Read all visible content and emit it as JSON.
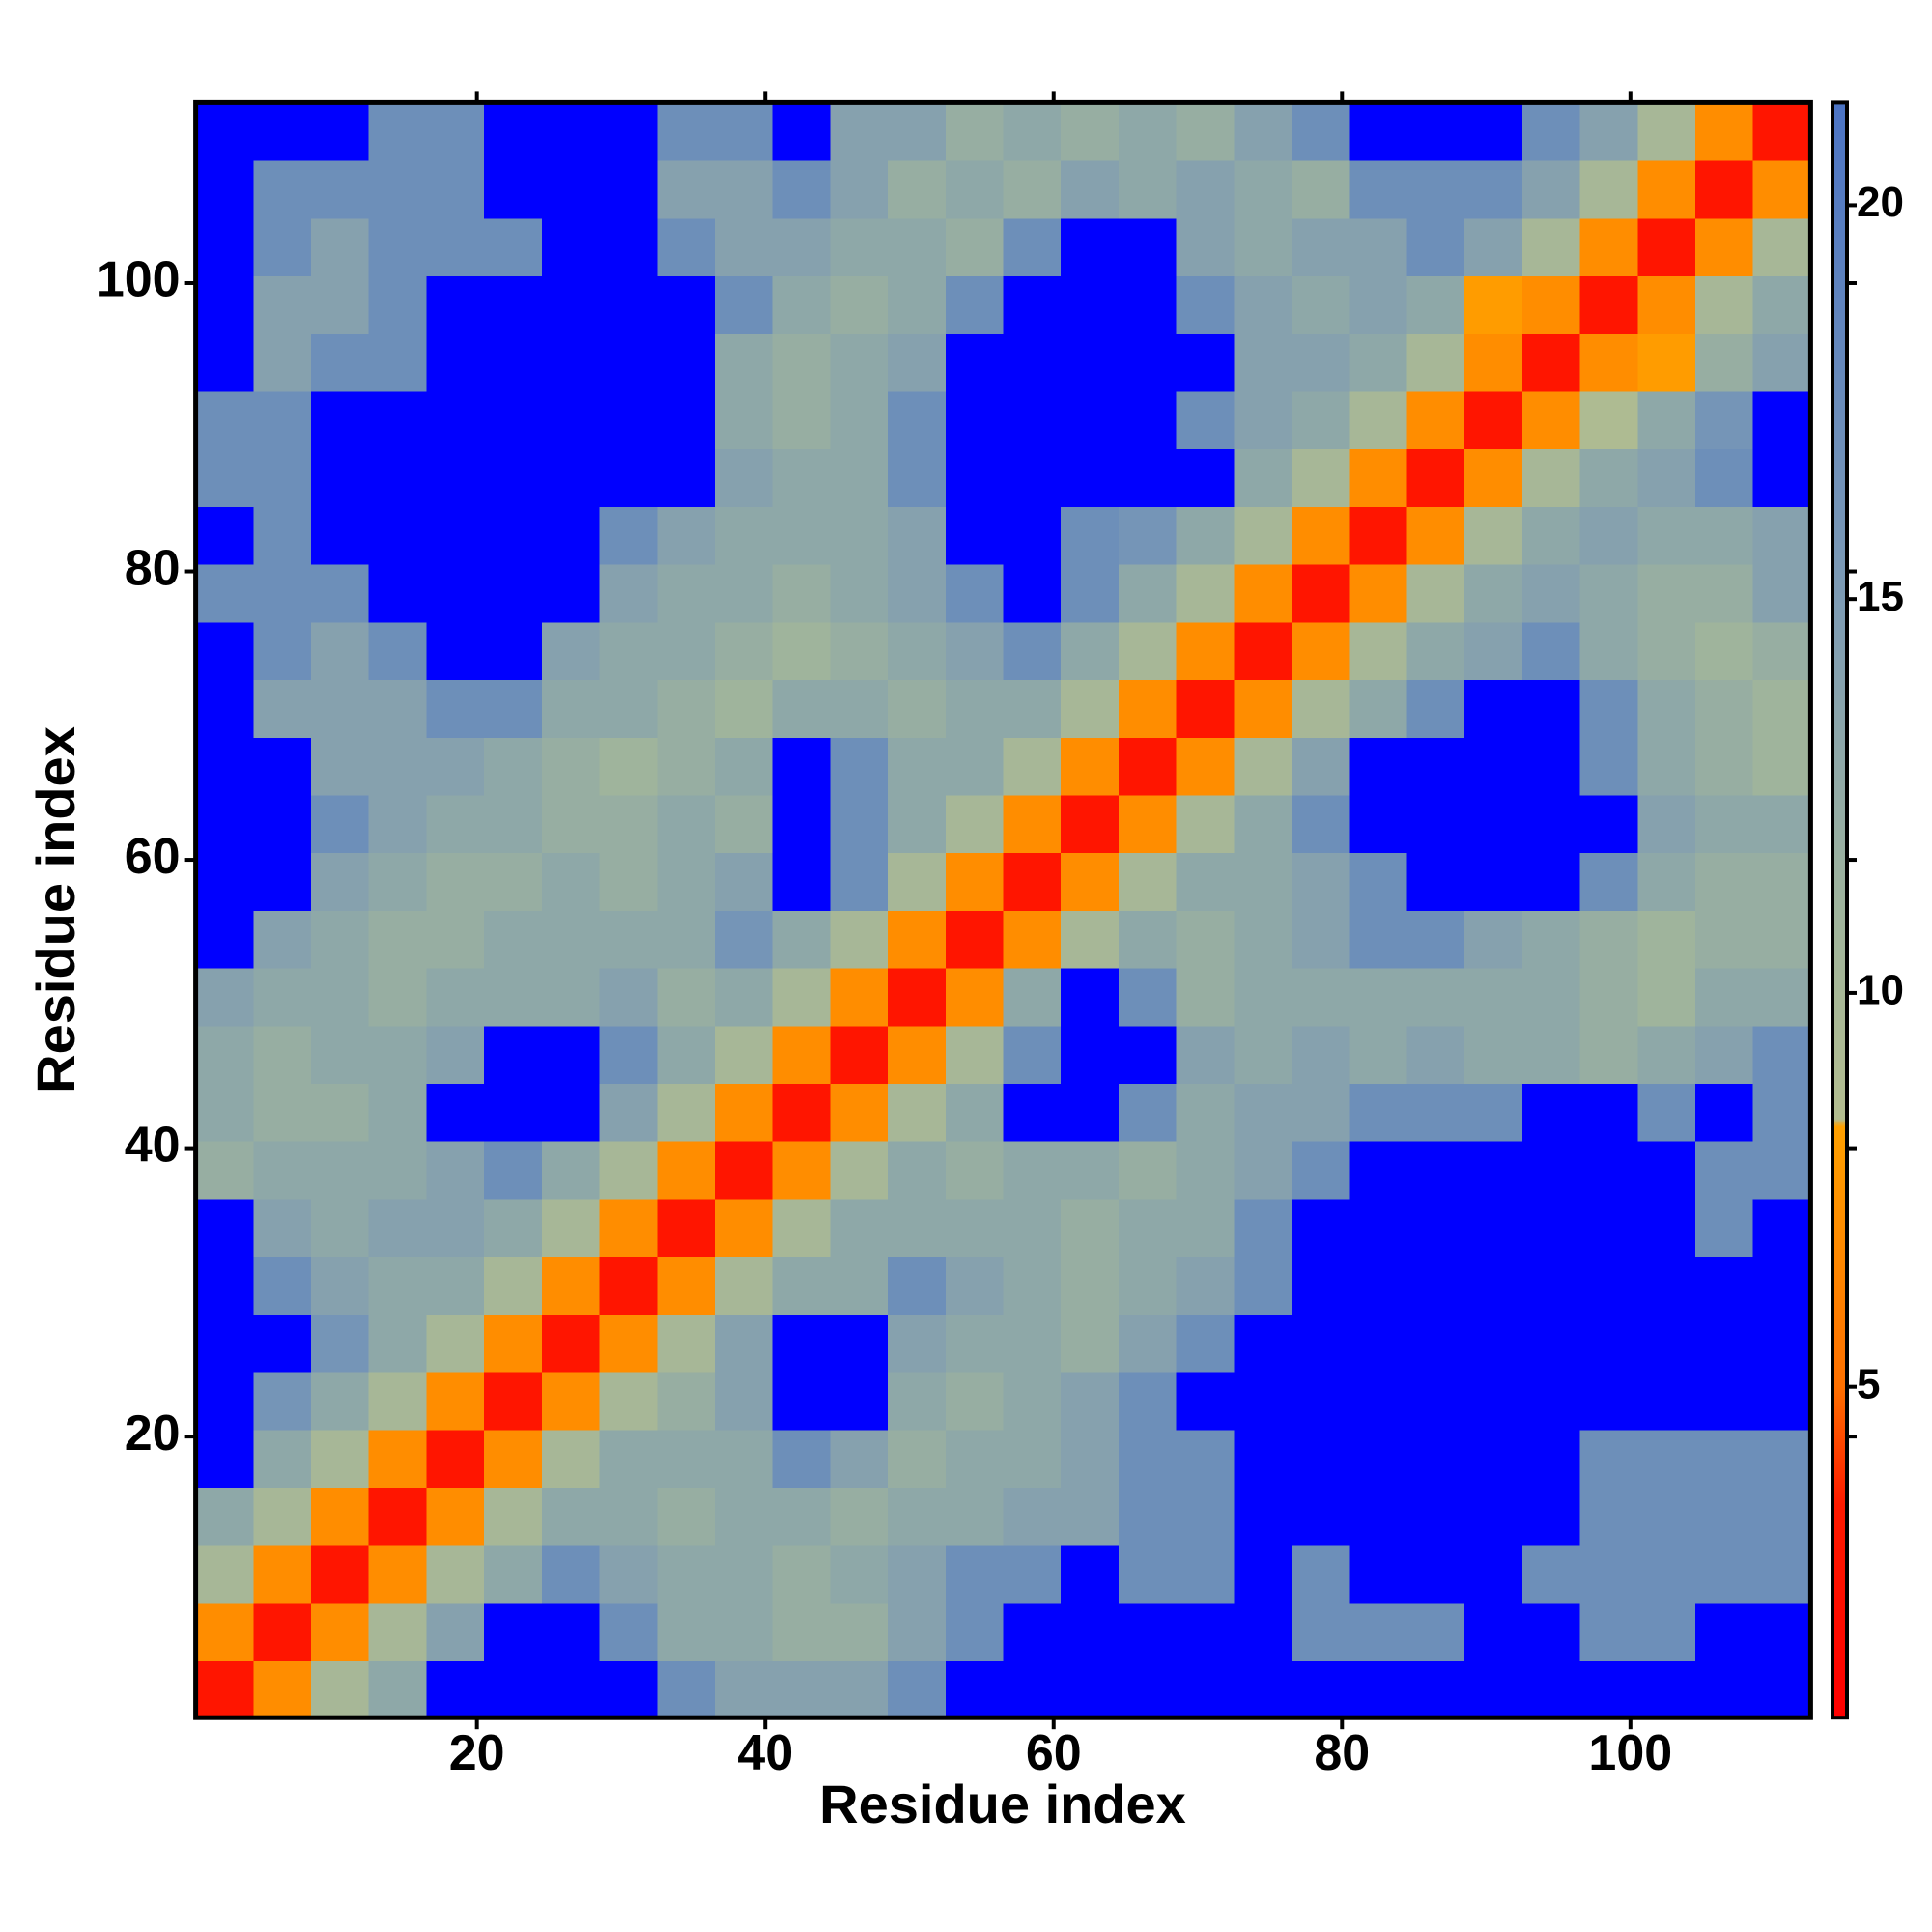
{
  "chart_data": {
    "type": "heatmap",
    "x_label": "Residue index",
    "y_label": "Residue index",
    "xbins": [
      0.5,
      4.5,
      8.5,
      12.5,
      16.5,
      20.5,
      24.5,
      28.5,
      32.5,
      36.5,
      40.5,
      44.5,
      48.5,
      52.5,
      56.5,
      60.5,
      64.5,
      68.5,
      72.5,
      76.5,
      80.5,
      84.5,
      88.5,
      92.5,
      96.5,
      100.5,
      104.5,
      108.5,
      112.5
    ],
    "ybins": [
      0.5,
      4.5,
      8.5,
      12.5,
      16.5,
      20.5,
      24.5,
      28.5,
      32.5,
      36.5,
      40.5,
      44.5,
      48.5,
      52.5,
      56.5,
      60.5,
      64.5,
      68.5,
      72.5,
      76.5,
      80.5,
      84.5,
      88.5,
      92.5,
      96.5,
      100.5,
      104.5,
      108.5,
      112.5
    ],
    "z": [
      [
        3,
        7,
        10,
        13,
        22,
        22,
        22,
        22,
        17,
        14,
        14,
        14,
        17,
        22,
        22,
        22,
        22,
        22,
        22,
        22,
        22,
        22,
        22,
        22,
        22,
        22,
        22,
        22
      ],
      [
        7,
        3,
        7,
        10,
        14,
        22,
        22,
        17,
        13,
        13,
        12,
        12,
        14,
        17,
        22,
        22,
        22,
        22,
        22,
        17,
        17,
        17,
        22,
        22,
        17,
        17,
        22,
        22
      ],
      [
        10,
        7,
        3,
        7,
        10,
        13,
        17,
        14,
        13,
        13,
        12,
        13,
        14,
        17,
        17,
        22,
        17,
        17,
        22,
        17,
        22,
        22,
        22,
        17,
        17,
        17,
        17,
        17
      ],
      [
        13,
        10,
        7,
        3,
        7,
        10,
        13,
        13,
        12,
        13,
        13,
        12,
        13,
        13,
        14,
        14,
        17,
        17,
        22,
        22,
        22,
        22,
        22,
        22,
        17,
        17,
        17,
        17
      ],
      [
        22,
        13,
        10,
        7,
        3,
        7,
        10,
        13,
        13,
        13,
        17,
        14,
        12,
        13,
        13,
        14,
        17,
        17,
        22,
        22,
        22,
        22,
        22,
        22,
        17,
        17,
        17,
        17
      ],
      [
        22,
        16,
        13,
        10,
        7,
        3,
        7,
        10,
        12,
        14,
        22,
        22,
        13,
        12,
        13,
        14,
        17,
        22,
        22,
        22,
        22,
        22,
        22,
        22,
        22,
        22,
        22,
        22
      ],
      [
        22,
        22,
        16,
        13,
        10,
        7,
        3,
        7,
        10,
        14,
        22,
        22,
        14,
        13,
        13,
        12,
        14,
        17,
        22,
        22,
        22,
        22,
        22,
        22,
        22,
        22,
        22,
        22
      ],
      [
        22,
        17,
        14,
        13,
        13,
        10,
        7,
        3,
        7,
        10,
        13,
        13,
        17,
        14,
        13,
        12,
        13,
        14,
        17,
        22,
        22,
        22,
        22,
        22,
        22,
        22,
        22,
        22
      ],
      [
        22,
        14,
        13,
        14,
        14,
        13,
        10,
        7,
        3,
        7,
        10,
        13,
        13,
        13,
        13,
        12,
        13,
        13,
        17,
        22,
        22,
        22,
        22,
        22,
        22,
        22,
        17,
        22
      ],
      [
        12,
        13,
        13,
        13,
        14,
        17,
        13,
        10,
        7,
        3,
        7,
        10,
        13,
        12,
        13,
        13,
        12,
        13,
        14,
        17,
        22,
        22,
        22,
        22,
        22,
        22,
        17,
        17
      ],
      [
        13,
        12,
        12,
        13,
        22,
        22,
        22,
        14,
        10,
        7,
        3,
        7,
        10,
        13,
        22,
        22,
        17,
        13,
        14,
        14,
        17,
        17,
        17,
        22,
        22,
        17,
        22,
        17
      ],
      [
        13,
        12,
        13,
        13,
        14,
        22,
        22,
        17,
        13,
        10,
        7,
        3,
        7,
        10,
        17,
        22,
        22,
        14,
        13,
        14,
        13,
        14,
        13,
        13,
        12,
        13,
        14,
        17
      ],
      [
        14,
        13,
        13,
        12,
        13,
        13,
        13,
        14,
        12,
        13,
        10,
        7,
        3,
        7,
        13,
        22,
        17,
        12,
        13,
        13,
        13,
        13,
        13,
        13,
        12,
        11,
        13,
        13
      ],
      [
        22,
        14,
        13,
        12,
        12,
        13,
        13,
        13,
        13,
        16,
        13,
        10,
        7,
        3,
        7,
        10,
        13,
        12,
        13,
        14,
        17,
        17,
        14,
        13,
        12,
        11,
        12,
        12
      ],
      [
        22,
        22,
        14,
        13,
        12,
        12,
        13,
        12,
        13,
        14,
        22,
        17,
        10,
        7,
        3,
        7,
        10,
        13,
        13,
        14,
        17,
        22,
        22,
        22,
        17,
        13,
        12,
        12
      ],
      [
        22,
        22,
        17,
        14,
        13,
        13,
        12,
        12,
        13,
        12,
        22,
        17,
        13,
        10,
        7,
        3,
        7,
        10,
        13,
        17,
        22,
        22,
        22,
        22,
        22,
        14,
        13,
        13
      ],
      [
        22,
        22,
        14,
        14,
        14,
        13,
        12,
        11,
        12,
        13,
        22,
        17,
        13,
        13,
        10,
        7,
        3,
        7,
        10,
        14,
        22,
        22,
        22,
        22,
        17,
        13,
        12,
        11
      ],
      [
        22,
        14,
        14,
        14,
        17,
        17,
        13,
        13,
        12,
        11,
        13,
        13,
        12,
        13,
        13,
        10,
        7,
        3,
        7,
        10,
        13,
        17,
        22,
        22,
        17,
        13,
        12,
        11
      ],
      [
        22,
        17,
        14,
        17,
        22,
        22,
        14,
        13,
        13,
        12,
        11,
        12,
        13,
        14,
        17,
        13,
        10,
        7,
        3,
        7,
        10,
        13,
        14,
        17,
        13,
        12,
        11,
        12
      ],
      [
        17,
        17,
        17,
        22,
        22,
        22,
        22,
        14,
        13,
        13,
        12,
        13,
        14,
        17,
        22,
        17,
        13,
        10,
        7,
        3,
        7,
        10,
        13,
        14,
        13,
        12,
        12,
        14
      ],
      [
        22,
        17,
        22,
        22,
        22,
        22,
        22,
        17,
        14,
        13,
        13,
        13,
        14,
        22,
        22,
        17,
        16,
        13,
        10,
        7,
        3,
        7,
        10,
        13,
        14,
        13,
        13,
        14
      ],
      [
        17,
        17,
        22,
        22,
        22,
        22,
        22,
        22,
        22,
        14,
        13,
        13,
        17,
        22,
        22,
        22,
        22,
        22,
        13,
        10,
        7,
        3,
        7,
        10,
        13,
        14,
        17,
        22
      ],
      [
        17,
        17,
        22,
        22,
        22,
        22,
        22,
        22,
        22,
        13,
        12,
        13,
        17,
        22,
        22,
        22,
        22,
        17,
        14,
        13,
        10,
        7,
        3,
        7,
        9,
        13,
        16,
        22
      ],
      [
        22,
        14,
        17,
        17,
        22,
        22,
        22,
        22,
        22,
        13,
        12,
        13,
        14,
        22,
        22,
        22,
        22,
        22,
        14,
        14,
        13,
        10,
        7,
        3,
        7,
        8,
        12,
        14
      ],
      [
        22,
        14,
        14,
        17,
        22,
        22,
        22,
        22,
        22,
        17,
        13,
        12,
        13,
        17,
        22,
        22,
        22,
        17,
        14,
        13,
        14,
        13,
        8,
        7,
        3,
        7,
        10,
        13
      ],
      [
        22,
        17,
        14,
        17,
        17,
        17,
        22,
        22,
        17,
        14,
        14,
        13,
        13,
        12,
        17,
        22,
        22,
        14,
        13,
        14,
        14,
        17,
        14,
        10,
        7,
        3,
        7,
        10
      ],
      [
        22,
        17,
        17,
        17,
        17,
        22,
        22,
        22,
        14,
        14,
        17,
        14,
        12,
        13,
        12,
        14,
        13,
        14,
        13,
        12,
        17,
        17,
        17,
        14,
        10,
        7,
        3,
        7
      ],
      [
        22,
        22,
        22,
        17,
        17,
        22,
        22,
        22,
        17,
        17,
        22,
        14,
        14,
        12,
        13,
        12,
        13,
        12,
        14,
        17,
        22,
        22,
        22,
        17,
        14,
        10,
        7,
        3
      ]
    ],
    "xlim": [
      0.5,
      112.5
    ],
    "ylim": [
      0.5,
      112.5
    ],
    "xticks": [
      20,
      40,
      60,
      80,
      100
    ],
    "yticks": [
      20,
      40,
      60,
      80,
      100
    ],
    "clim": [
      0.8,
      21.3
    ],
    "cticks": [
      5,
      10,
      15,
      20
    ],
    "colorscale": [
      [
        0.8,
        "#ff0000"
      ],
      [
        3.5,
        "#ff1a00"
      ],
      [
        5,
        "#ff7000"
      ],
      [
        8.3,
        "#ffa000"
      ],
      [
        8.4,
        "#b3bd8f"
      ],
      [
        11,
        "#9fb49c"
      ],
      [
        15,
        "#7d9bb4"
      ],
      [
        21.3,
        "#4c74c4"
      ]
    ],
    "over_color": "#0000ff"
  }
}
